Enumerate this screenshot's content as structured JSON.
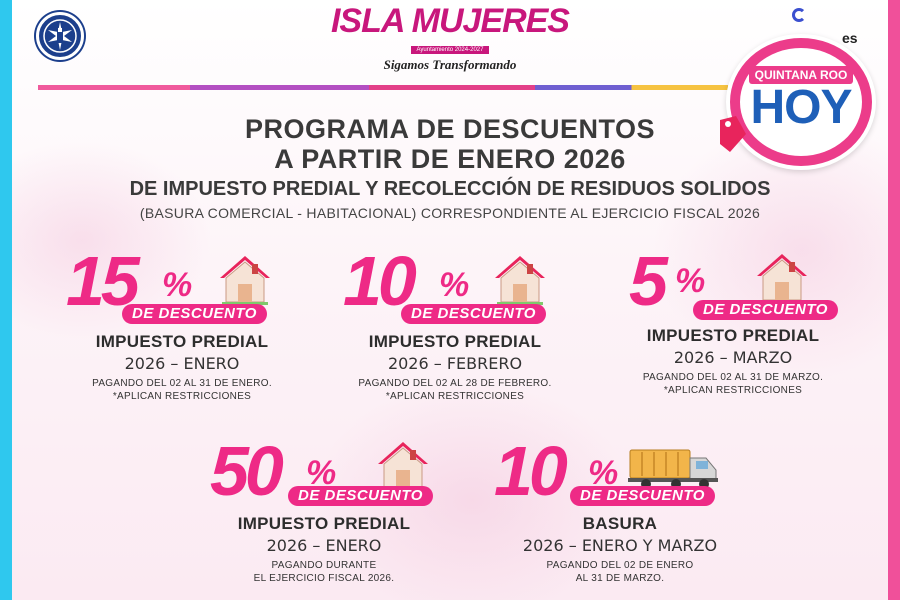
{
  "header": {
    "brand_name": "ISLA MUJERES",
    "brand_sub": "Ayuntamiento 2024-2027",
    "slogan": "Sigamos Transformando",
    "partner_text": "es"
  },
  "badge": {
    "top": "QUINTANA ROO",
    "main": "HOY"
  },
  "titles": {
    "line1": "PROGRAMA DE DESCUENTOS",
    "line2": "A PARTIR DE ENERO 2026",
    "subtitle": "DE IMPUESTO PREDIAL Y RECOLECCIÓN DE RESIDUOS SOLIDOS",
    "subtitle2": "(BASURA COMERCIAL - HABITACIONAL) CORRESPONDIENTE AL EJERCICIO FISCAL 2026"
  },
  "discount_label": "DE DESCUENTO",
  "cards": [
    {
      "value": "15",
      "sign": "%",
      "concept": "IMPUESTO PREDIAL",
      "period": "2026 – ENERO",
      "note1": "PAGANDO DEL 02 AL 31 DE ENERO.",
      "note2": "*APLICAN RESTRICCIONES",
      "icon": "house-icon"
    },
    {
      "value": "10",
      "sign": "%",
      "concept": "IMPUESTO PREDIAL",
      "period": "2026 – FEBRERO",
      "note1": "PAGANDO DEL 02 AL 28 DE FEBRERO.",
      "note2": "*APLICAN RESTRICCIONES",
      "icon": "house-icon"
    },
    {
      "value": "5",
      "sign": "%",
      "concept": "IMPUESTO PREDIAL",
      "period": "2026 – MARZO",
      "note1": "PAGANDO DEL 02 AL 31 DE MARZO.",
      "note2": "*APLICAN RESTRICCIONES",
      "icon": "house-icon"
    },
    {
      "value": "50",
      "sign": "%",
      "concept": "IMPUESTO PREDIAL",
      "period": "2026 – ENERO",
      "note1": "PAGANDO DURANTE",
      "note2": "EL EJERCICIO FISCAL 2026.",
      "icon": "house-icon"
    },
    {
      "value": "10",
      "sign": "%",
      "concept": "BASURA",
      "period": "2026 – ENERO Y MARZO",
      "note1": "PAGANDO DEL 02 DE ENERO",
      "note2": "AL 31 DE MARZO.",
      "icon": "garbage-truck-icon"
    }
  ],
  "colors": {
    "pink": "#ee2a86",
    "cyan": "#2fc8ee",
    "frame_pink": "#f0509a",
    "badge_blue": "#1e5fb8"
  }
}
